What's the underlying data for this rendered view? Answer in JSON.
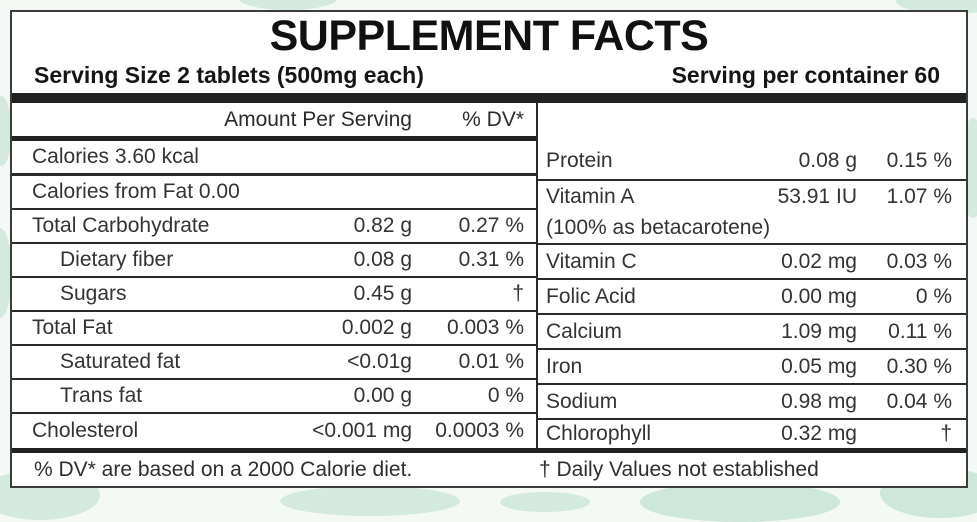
{
  "header": {
    "title": "SUPPLEMENT FACTS",
    "serving_size": "Serving Size 2 tablets (500mg each)",
    "servings_per_container": "Serving per container 60"
  },
  "left_table": {
    "amount_header": "Amount Per Serving",
    "dv_header": "% DV*",
    "rows": [
      {
        "name": "Calories 3.60 kcal",
        "amount": "",
        "dv": ""
      },
      {
        "name": "Calories from Fat 0.00",
        "amount": "",
        "dv": ""
      },
      {
        "name": "Total Carbohydrate",
        "amount": "0.82 g",
        "dv": "0.27 %"
      },
      {
        "name": "Dietary fiber",
        "amount": "0.08 g",
        "dv": "0.31 %"
      },
      {
        "name": "Sugars",
        "amount": "0.45 g",
        "dv": "†"
      },
      {
        "name": "Total Fat",
        "amount": "0.002 g",
        "dv": "0.003 %"
      },
      {
        "name": "Saturated fat",
        "amount": "<0.01g",
        "dv": "0.01 %"
      },
      {
        "name": "Trans fat",
        "amount": "0.00 g",
        "dv": "0 %"
      },
      {
        "name": "Cholesterol",
        "amount": "<0.001 mg",
        "dv": "0.0003 %"
      }
    ]
  },
  "right_table": {
    "rows": [
      {
        "name": "Protein",
        "amount": "0.08 g",
        "dv": "0.15 %"
      },
      {
        "name": "Vitamin A",
        "amount": "53.91 IU",
        "dv": "1.07 %"
      },
      {
        "name": "(100% as betacarotene)",
        "amount": "",
        "dv": ""
      },
      {
        "name": "Vitamin C",
        "amount": "0.02 mg",
        "dv": "0.03 %"
      },
      {
        "name": "Folic Acid",
        "amount": "0.00 mg",
        "dv": "0 %"
      },
      {
        "name": "Calcium",
        "amount": "1.09 mg",
        "dv": "0.11 %"
      },
      {
        "name": "Iron",
        "amount": "0.05 mg",
        "dv": "0.30 %"
      },
      {
        "name": "Sodium",
        "amount": "0.98 mg",
        "dv": "0.04 %"
      },
      {
        "name": "Chlorophyll",
        "amount": "0.32 mg",
        "dv": "†"
      }
    ]
  },
  "footnotes": {
    "dv_note": "% DV* are based on a 2000 Calorie diet.",
    "dagger_note": "† Daily Values not established"
  },
  "colors": {
    "ink": "#222222",
    "label_bg": "#ffffff",
    "page_bg": "#f4f9f5",
    "watermark": "#c7e4d6"
  }
}
